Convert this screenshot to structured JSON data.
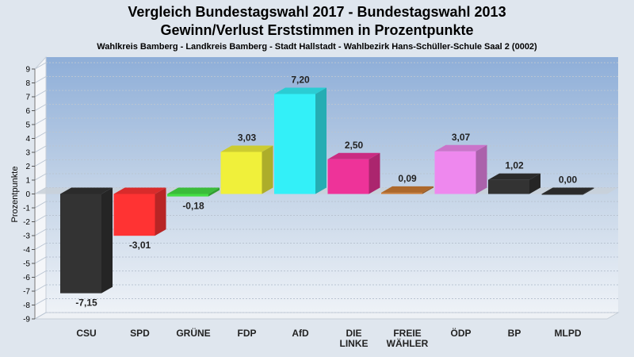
{
  "header": {
    "title_line1": "Vergleich Bundestagswahl 2017 - Bundestagswahl 2013",
    "title_line2": "Gewinn/Verlust Erststimmen in Prozentpunkte",
    "subtitle": "Wahlkreis Bamberg - Landkreis Bamberg - Stadt Hallstadt - Wahlbezirk Hans-Schüller-Schule Saal 2 (0002)"
  },
  "chart_data": {
    "type": "bar",
    "title": "Vergleich Bundestagswahl 2017 - Bundestagswahl 2013 / Gewinn/Verlust Erststimmen in Prozentpunkte",
    "ylabel": "Prozentpunkte",
    "xlabel": "",
    "ylim": [
      -9,
      9
    ],
    "yticks": [
      9,
      8,
      7,
      6,
      5,
      4,
      3,
      2,
      1,
      0,
      -1,
      -2,
      -3,
      -4,
      -5,
      -6,
      -7,
      -8,
      -9
    ],
    "grid": true,
    "categories": [
      "CSU",
      "SPD",
      "GRÜNE",
      "FDP",
      "AfD",
      "DIE LINKE",
      "FREIE WÄHLER",
      "ÖDP",
      "BP",
      "MLPD"
    ],
    "category_lines": [
      [
        "CSU"
      ],
      [
        "SPD"
      ],
      [
        "GRÜNE"
      ],
      [
        "FDP"
      ],
      [
        "AfD"
      ],
      [
        "DIE",
        "LINKE"
      ],
      [
        "FREIE",
        "WÄHLER"
      ],
      [
        "ÖDP"
      ],
      [
        "BP"
      ],
      [
        "MLPD"
      ]
    ],
    "values": [
      -7.15,
      -3.01,
      -0.18,
      3.03,
      7.2,
      2.5,
      0.09,
      3.07,
      1.02,
      0.0
    ],
    "value_labels": [
      "-7,15",
      "-3,01",
      "-0,18",
      "3,03",
      "7,20",
      "2,50",
      "0,09",
      "3,07",
      "1,02",
      "0,00"
    ],
    "colors": [
      "#333333",
      "#ff3333",
      "#44dd44",
      "#f0f03a",
      "#33f0f8",
      "#ee3399",
      "#cc7a33",
      "#ee88ee",
      "#333333",
      "#333333"
    ]
  }
}
